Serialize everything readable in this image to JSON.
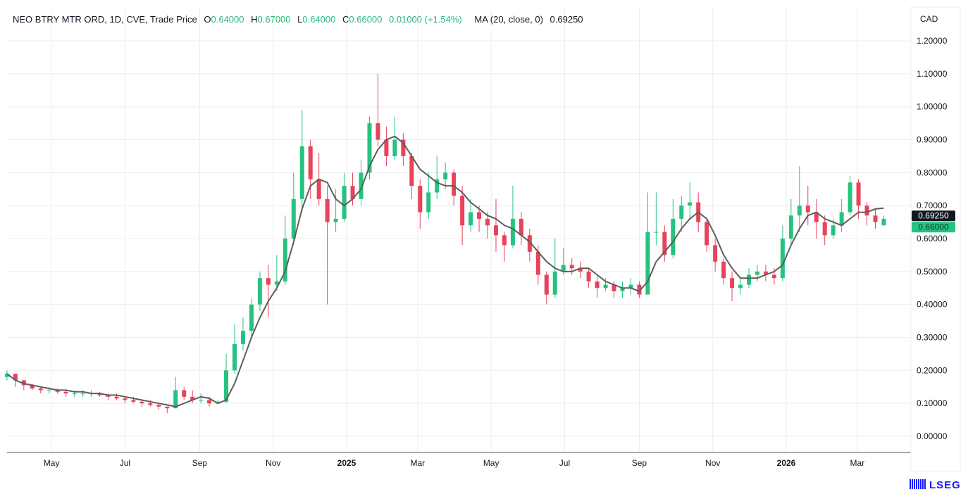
{
  "header": {
    "symbol_info": "NEO BTRY MTR ORD, 1D, CVE, Trade Price",
    "open_label": "O",
    "open": "0.64000",
    "high_label": "H",
    "high": "0.67000",
    "low_label": "L",
    "low": "0.64000",
    "close_label": "C",
    "close": "0.66000",
    "change": "0.01000 (+1.54%)",
    "ma_label": "MA (20, close, 0)",
    "ma_value": "0.69250"
  },
  "currency": "CAD",
  "logo": "LSEG",
  "colors": {
    "up": "#26c281",
    "down": "#e8435a",
    "ma": "#5d5d5d",
    "grid": "#eeeeee"
  },
  "chart_data": {
    "type": "candlestick",
    "title": "",
    "y_axis_side": "right",
    "ylim": [
      -0.05,
      1.25
    ],
    "y_ticks": [
      "0.00000",
      "0.10000",
      "0.20000",
      "0.30000",
      "0.40000",
      "0.50000",
      "0.60000",
      "0.70000",
      "0.80000",
      "0.90000",
      "1.00000",
      "1.10000",
      "1.20000"
    ],
    "x_ticks": [
      {
        "date": "2024-05-01",
        "label": "May",
        "bold": false
      },
      {
        "date": "2024-07-01",
        "label": "Jul",
        "bold": false
      },
      {
        "date": "2024-09-01",
        "label": "Sep",
        "bold": false
      },
      {
        "date": "2024-11-01",
        "label": "Nov",
        "bold": false
      },
      {
        "date": "2025-01-01",
        "label": "2025",
        "bold": true
      },
      {
        "date": "2025-03-01",
        "label": "Mar",
        "bold": false
      },
      {
        "date": "2025-05-01",
        "label": "May",
        "bold": false
      },
      {
        "date": "2025-07-01",
        "label": "Jul",
        "bold": false
      },
      {
        "date": "2025-09-01",
        "label": "Sep",
        "bold": false
      },
      {
        "date": "2025-11-01",
        "label": "Nov",
        "bold": false
      },
      {
        "date": "2026-01-01",
        "label": "2026",
        "bold": true
      },
      {
        "date": "2026-03-01",
        "label": "Mar",
        "bold": false
      }
    ],
    "grid": true,
    "price_tags": [
      {
        "label": "0.69250",
        "value": 0.6925,
        "color": "#131722"
      },
      {
        "label": "0.66000",
        "value": 0.66,
        "color": "#26c281"
      }
    ],
    "candle_fields": [
      "date",
      "open",
      "high",
      "low",
      "close"
    ],
    "candles": [
      [
        "2024-03-25",
        0.18,
        0.2,
        0.17,
        0.19
      ],
      [
        "2024-04-01",
        0.19,
        0.19,
        0.15,
        0.17
      ],
      [
        "2024-04-08",
        0.17,
        0.17,
        0.14,
        0.155
      ],
      [
        "2024-04-15",
        0.155,
        0.16,
        0.14,
        0.145
      ],
      [
        "2024-04-22",
        0.145,
        0.15,
        0.13,
        0.14
      ],
      [
        "2024-04-29",
        0.14,
        0.15,
        0.13,
        0.14
      ],
      [
        "2024-05-06",
        0.14,
        0.145,
        0.13,
        0.135
      ],
      [
        "2024-05-13",
        0.135,
        0.14,
        0.12,
        0.13
      ],
      [
        "2024-05-20",
        0.13,
        0.14,
        0.12,
        0.13
      ],
      [
        "2024-05-27",
        0.13,
        0.14,
        0.12,
        0.13
      ],
      [
        "2024-06-03",
        0.13,
        0.14,
        0.12,
        0.13
      ],
      [
        "2024-06-10",
        0.13,
        0.135,
        0.12,
        0.125
      ],
      [
        "2024-06-17",
        0.125,
        0.13,
        0.11,
        0.12
      ],
      [
        "2024-06-24",
        0.12,
        0.13,
        0.11,
        0.115
      ],
      [
        "2024-07-01",
        0.115,
        0.12,
        0.1,
        0.11
      ],
      [
        "2024-07-08",
        0.11,
        0.12,
        0.1,
        0.105
      ],
      [
        "2024-07-15",
        0.105,
        0.11,
        0.09,
        0.1
      ],
      [
        "2024-07-22",
        0.1,
        0.11,
        0.09,
        0.095
      ],
      [
        "2024-07-29",
        0.095,
        0.1,
        0.08,
        0.09
      ],
      [
        "2024-08-05",
        0.09,
        0.09,
        0.07,
        0.085
      ],
      [
        "2024-08-12",
        0.085,
        0.18,
        0.085,
        0.14
      ],
      [
        "2024-08-19",
        0.14,
        0.15,
        0.11,
        0.12
      ],
      [
        "2024-08-26",
        0.12,
        0.14,
        0.1,
        0.11
      ],
      [
        "2024-09-02",
        0.11,
        0.13,
        0.1,
        0.11
      ],
      [
        "2024-09-09",
        0.11,
        0.12,
        0.09,
        0.1
      ],
      [
        "2024-09-16",
        0.1,
        0.11,
        0.1,
        0.105
      ],
      [
        "2024-09-23",
        0.105,
        0.25,
        0.1,
        0.2
      ],
      [
        "2024-09-30",
        0.2,
        0.34,
        0.19,
        0.28
      ],
      [
        "2024-10-07",
        0.28,
        0.36,
        0.26,
        0.32
      ],
      [
        "2024-10-14",
        0.32,
        0.42,
        0.3,
        0.4
      ],
      [
        "2024-10-21",
        0.4,
        0.5,
        0.38,
        0.48
      ],
      [
        "2024-10-28",
        0.48,
        0.52,
        0.36,
        0.46
      ],
      [
        "2024-11-04",
        0.46,
        0.55,
        0.44,
        0.47
      ],
      [
        "2024-11-11",
        0.47,
        0.67,
        0.46,
        0.6
      ],
      [
        "2024-11-18",
        0.6,
        0.8,
        0.58,
        0.72
      ],
      [
        "2024-11-25",
        0.72,
        0.99,
        0.68,
        0.88
      ],
      [
        "2024-12-02",
        0.88,
        0.9,
        0.72,
        0.78
      ],
      [
        "2024-12-09",
        0.78,
        0.86,
        0.7,
        0.72
      ],
      [
        "2024-12-16",
        0.72,
        0.76,
        0.4,
        0.65
      ],
      [
        "2024-12-23",
        0.65,
        0.75,
        0.62,
        0.66
      ],
      [
        "2024-12-30",
        0.66,
        0.8,
        0.65,
        0.76
      ],
      [
        "2025-01-06",
        0.76,
        0.8,
        0.7,
        0.72
      ],
      [
        "2025-01-13",
        0.72,
        0.84,
        0.7,
        0.8
      ],
      [
        "2025-01-20",
        0.8,
        0.97,
        0.78,
        0.95
      ],
      [
        "2025-01-27",
        0.95,
        1.1,
        0.88,
        0.9
      ],
      [
        "2025-02-03",
        0.9,
        0.94,
        0.82,
        0.85
      ],
      [
        "2025-02-10",
        0.85,
        0.97,
        0.84,
        0.9
      ],
      [
        "2025-02-17",
        0.9,
        0.92,
        0.82,
        0.85
      ],
      [
        "2025-02-24",
        0.85,
        0.86,
        0.72,
        0.76
      ],
      [
        "2025-03-03",
        0.76,
        0.78,
        0.63,
        0.68
      ],
      [
        "2025-03-10",
        0.68,
        0.8,
        0.66,
        0.74
      ],
      [
        "2025-03-17",
        0.74,
        0.85,
        0.72,
        0.78
      ],
      [
        "2025-03-24",
        0.78,
        0.83,
        0.75,
        0.8
      ],
      [
        "2025-03-31",
        0.8,
        0.81,
        0.7,
        0.73
      ],
      [
        "2025-04-07",
        0.73,
        0.76,
        0.58,
        0.64
      ],
      [
        "2025-04-14",
        0.64,
        0.72,
        0.62,
        0.68
      ],
      [
        "2025-04-21",
        0.68,
        0.7,
        0.62,
        0.66
      ],
      [
        "2025-04-28",
        0.66,
        0.68,
        0.6,
        0.64
      ],
      [
        "2025-05-05",
        0.64,
        0.72,
        0.56,
        0.61
      ],
      [
        "2025-05-12",
        0.61,
        0.62,
        0.53,
        0.58
      ],
      [
        "2025-05-19",
        0.58,
        0.76,
        0.57,
        0.66
      ],
      [
        "2025-05-26",
        0.66,
        0.68,
        0.58,
        0.61
      ],
      [
        "2025-06-02",
        0.61,
        0.63,
        0.53,
        0.56
      ],
      [
        "2025-06-09",
        0.56,
        0.58,
        0.46,
        0.49
      ],
      [
        "2025-06-16",
        0.49,
        0.5,
        0.4,
        0.43
      ],
      [
        "2025-06-23",
        0.43,
        0.6,
        0.42,
        0.5
      ],
      [
        "2025-06-30",
        0.5,
        0.57,
        0.49,
        0.52
      ],
      [
        "2025-07-07",
        0.52,
        0.54,
        0.49,
        0.51
      ],
      [
        "2025-07-14",
        0.51,
        0.53,
        0.48,
        0.5
      ],
      [
        "2025-07-21",
        0.5,
        0.51,
        0.45,
        0.47
      ],
      [
        "2025-07-28",
        0.47,
        0.49,
        0.42,
        0.45
      ],
      [
        "2025-08-04",
        0.45,
        0.48,
        0.44,
        0.46
      ],
      [
        "2025-08-11",
        0.46,
        0.47,
        0.42,
        0.44
      ],
      [
        "2025-08-18",
        0.44,
        0.47,
        0.42,
        0.45
      ],
      [
        "2025-08-25",
        0.45,
        0.48,
        0.43,
        0.46
      ],
      [
        "2025-09-01",
        0.46,
        0.47,
        0.42,
        0.43
      ],
      [
        "2025-09-08",
        0.43,
        0.74,
        0.43,
        0.62
      ],
      [
        "2025-09-15",
        0.62,
        0.74,
        0.58,
        0.62
      ],
      [
        "2025-09-22",
        0.62,
        0.64,
        0.53,
        0.55
      ],
      [
        "2025-09-29",
        0.55,
        0.72,
        0.54,
        0.66
      ],
      [
        "2025-10-06",
        0.66,
        0.73,
        0.62,
        0.7
      ],
      [
        "2025-10-13",
        0.7,
        0.77,
        0.66,
        0.71
      ],
      [
        "2025-10-20",
        0.71,
        0.74,
        0.62,
        0.65
      ],
      [
        "2025-10-27",
        0.65,
        0.66,
        0.56,
        0.58
      ],
      [
        "2025-11-03",
        0.58,
        0.6,
        0.5,
        0.53
      ],
      [
        "2025-11-10",
        0.53,
        0.54,
        0.46,
        0.48
      ],
      [
        "2025-11-17",
        0.48,
        0.5,
        0.41,
        0.45
      ],
      [
        "2025-11-24",
        0.45,
        0.48,
        0.43,
        0.46
      ],
      [
        "2025-12-01",
        0.46,
        0.51,
        0.45,
        0.49
      ],
      [
        "2025-12-08",
        0.49,
        0.52,
        0.47,
        0.5
      ],
      [
        "2025-12-15",
        0.5,
        0.52,
        0.47,
        0.49
      ],
      [
        "2025-12-22",
        0.49,
        0.51,
        0.46,
        0.48
      ],
      [
        "2025-12-29",
        0.48,
        0.64,
        0.47,
        0.6
      ],
      [
        "2026-01-05",
        0.6,
        0.72,
        0.58,
        0.67
      ],
      [
        "2026-01-12",
        0.67,
        0.82,
        0.62,
        0.7
      ],
      [
        "2026-01-19",
        0.7,
        0.76,
        0.64,
        0.68
      ],
      [
        "2026-01-26",
        0.68,
        0.72,
        0.6,
        0.65
      ],
      [
        "2026-02-02",
        0.65,
        0.67,
        0.58,
        0.61
      ],
      [
        "2026-02-09",
        0.61,
        0.66,
        0.6,
        0.64
      ],
      [
        "2026-02-16",
        0.64,
        0.72,
        0.62,
        0.68
      ],
      [
        "2026-02-23",
        0.68,
        0.79,
        0.67,
        0.77
      ],
      [
        "2026-03-02",
        0.77,
        0.78,
        0.66,
        0.7
      ],
      [
        "2026-03-09",
        0.7,
        0.71,
        0.64,
        0.67
      ],
      [
        "2026-03-16",
        0.67,
        0.69,
        0.63,
        0.65
      ],
      [
        "2026-03-23",
        0.64,
        0.67,
        0.64,
        0.66
      ]
    ],
    "ma_series": {
      "name": "MA (20, close, 0)",
      "values": [
        0.19,
        0.17,
        0.16,
        0.155,
        0.15,
        0.145,
        0.14,
        0.14,
        0.135,
        0.135,
        0.13,
        0.13,
        0.125,
        0.125,
        0.12,
        0.115,
        0.11,
        0.105,
        0.1,
        0.095,
        0.09,
        0.1,
        0.11,
        0.12,
        0.115,
        0.1,
        0.11,
        0.16,
        0.23,
        0.3,
        0.36,
        0.41,
        0.45,
        0.5,
        0.59,
        0.69,
        0.76,
        0.78,
        0.77,
        0.72,
        0.7,
        0.72,
        0.75,
        0.82,
        0.87,
        0.9,
        0.91,
        0.89,
        0.85,
        0.81,
        0.79,
        0.77,
        0.76,
        0.76,
        0.74,
        0.71,
        0.69,
        0.67,
        0.66,
        0.64,
        0.63,
        0.61,
        0.59,
        0.56,
        0.53,
        0.51,
        0.5,
        0.5,
        0.51,
        0.51,
        0.49,
        0.47,
        0.46,
        0.45,
        0.45,
        0.44,
        0.47,
        0.53,
        0.56,
        0.59,
        0.63,
        0.66,
        0.68,
        0.66,
        0.61,
        0.55,
        0.51,
        0.48,
        0.48,
        0.48,
        0.49,
        0.5,
        0.52,
        0.58,
        0.63,
        0.67,
        0.68,
        0.66,
        0.65,
        0.64,
        0.66,
        0.68,
        0.68,
        0.69,
        0.6925
      ]
    }
  }
}
